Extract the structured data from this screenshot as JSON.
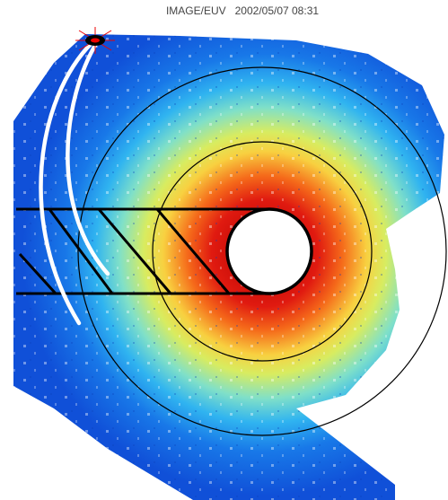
{
  "header": {
    "title": "IMAGE/EUV   2002/05/07 08:31"
  }
}
